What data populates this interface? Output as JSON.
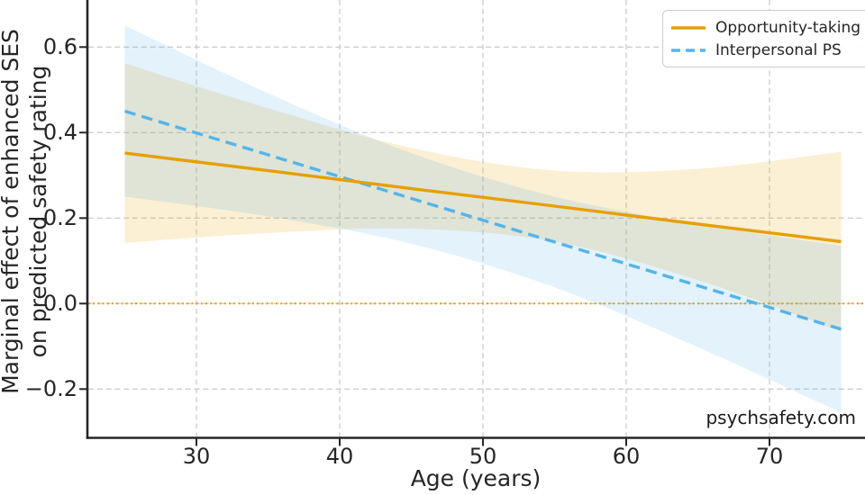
{
  "chart_data": {
    "type": "line",
    "xlabel": "Age (years)",
    "ylabel_lines": [
      "Marginal effect of enhanced SES",
      "on predicted safety rating"
    ],
    "x_axis": {
      "ticks": [
        30,
        40,
        50,
        60,
        70
      ],
      "data_range": [
        25,
        75
      ]
    },
    "y_axis": {
      "ticks": [
        {
          "value": 0.6,
          "label": "0.6"
        },
        {
          "value": 0.4,
          "label": "0.4"
        },
        {
          "value": 0.2,
          "label": "0.2"
        },
        {
          "value": 0.0,
          "label": "0.0"
        },
        {
          "value": -0.2,
          "label": "−0.2"
        }
      ]
    },
    "grid": {
      "on": true,
      "color": "#cdcdcd",
      "style": "dashed"
    },
    "zero_reference_line": {
      "y": 0.0,
      "color": "#E69F00",
      "style": "dotted"
    },
    "x": [
      25,
      35,
      45,
      55,
      65,
      75
    ],
    "series": [
      {
        "name": "Opportunity-taking",
        "color": "#E69F00",
        "line_style": "solid",
        "values": [
          0.352,
          0.311,
          0.269,
          0.228,
          0.186,
          0.145
        ],
        "ci_upper": [
          0.562,
          0.457,
          0.364,
          0.311,
          0.315,
          0.355
        ],
        "ci_lower": [
          0.142,
          0.165,
          0.175,
          0.145,
          0.055,
          -0.065
        ],
        "fill_opacity": 0.17
      },
      {
        "name": "Interpersonal PS",
        "color": "#56B4E9",
        "line_style": "dashed",
        "values": [
          0.45,
          0.348,
          0.246,
          0.144,
          0.042,
          -0.06
        ],
        "ci_upper": [
          0.65,
          0.492,
          0.352,
          0.25,
          0.186,
          0.135
        ],
        "ci_lower": [
          0.25,
          0.204,
          0.14,
          0.038,
          -0.102,
          -0.255
        ],
        "fill_opacity": 0.17
      }
    ],
    "legend": {
      "position": "upper right"
    }
  },
  "watermark": {
    "text": "psychsafety.com"
  },
  "text_color": "#262626"
}
